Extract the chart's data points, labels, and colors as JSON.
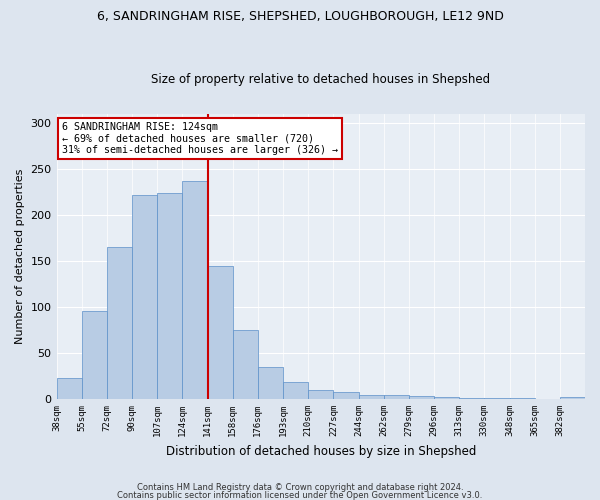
{
  "title1": "6, SANDRINGHAM RISE, SHEPSHED, LOUGHBOROUGH, LE12 9ND",
  "title2": "Size of property relative to detached houses in Shepshed",
  "xlabel": "Distribution of detached houses by size in Shepshed",
  "ylabel": "Number of detached properties",
  "bar_color": "#b8cce4",
  "bar_edge_color": "#5b8fc9",
  "vline_color": "#cc0000",
  "vline_index": 5,
  "categories": [
    "38sqm",
    "55sqm",
    "72sqm",
    "90sqm",
    "107sqm",
    "124sqm",
    "141sqm",
    "158sqm",
    "176sqm",
    "193sqm",
    "210sqm",
    "227sqm",
    "244sqm",
    "262sqm",
    "279sqm",
    "296sqm",
    "313sqm",
    "330sqm",
    "348sqm",
    "365sqm",
    "382sqm"
  ],
  "values": [
    23,
    96,
    165,
    222,
    224,
    237,
    144,
    75,
    35,
    18,
    10,
    8,
    4,
    4,
    3,
    2,
    1,
    1,
    1,
    0,
    2
  ],
  "ylim": [
    0,
    310
  ],
  "yticks": [
    0,
    50,
    100,
    150,
    200,
    250,
    300
  ],
  "annotation_text": "6 SANDRINGHAM RISE: 124sqm\n← 69% of detached houses are smaller (720)\n31% of semi-detached houses are larger (326) →",
  "annotation_box_color": "#ffffff",
  "annotation_box_edge": "#cc0000",
  "footer1": "Contains HM Land Registry data © Crown copyright and database right 2024.",
  "footer2": "Contains public sector information licensed under the Open Government Licence v3.0.",
  "background_color": "#dde5ef",
  "plot_bg_color": "#e8eef5",
  "fig_width": 6.0,
  "fig_height": 5.0,
  "dpi": 100
}
